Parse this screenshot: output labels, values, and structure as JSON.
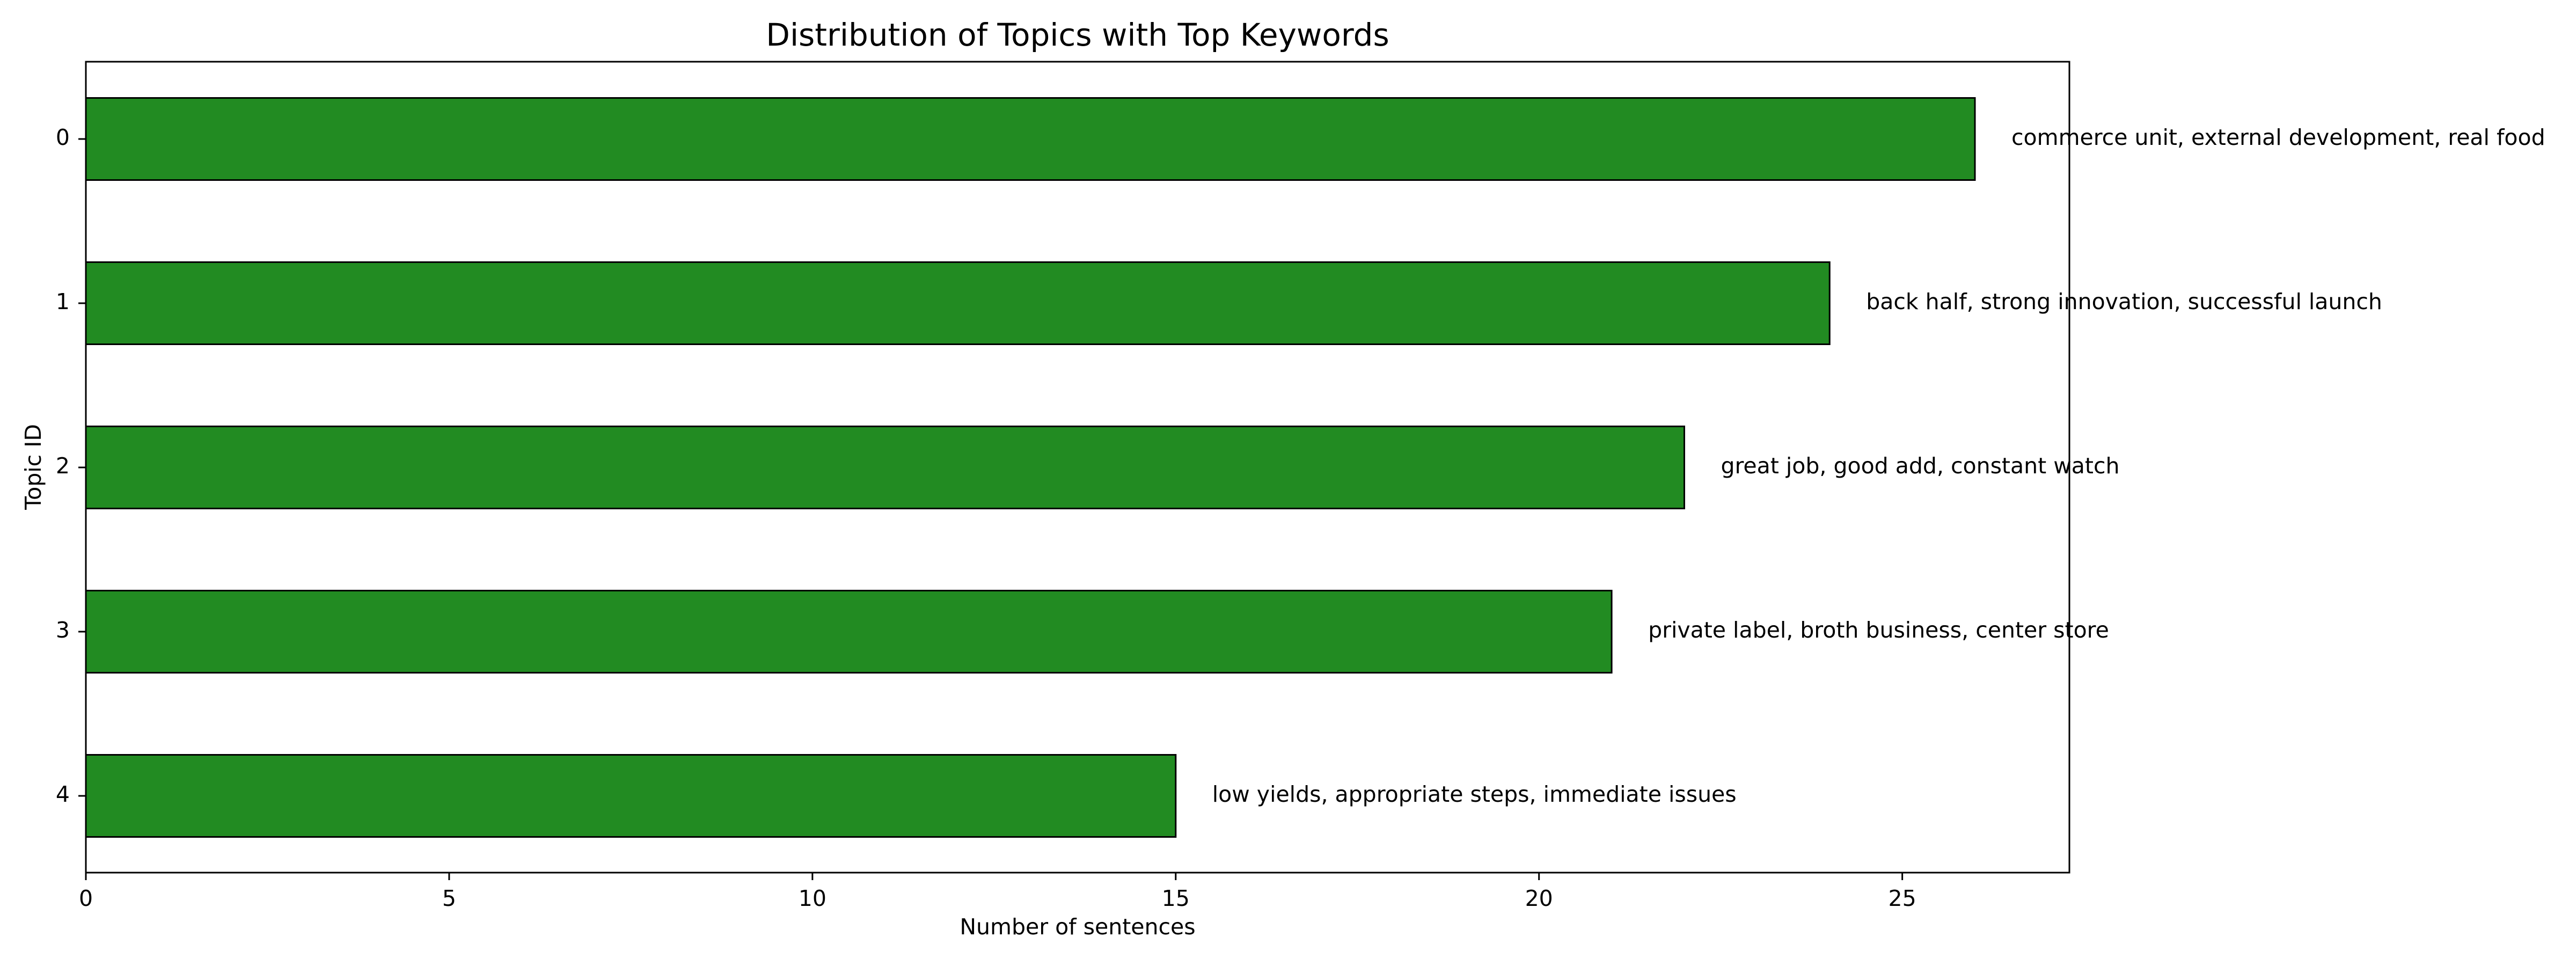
{
  "chart_data": {
    "type": "bar",
    "orientation": "horizontal",
    "title": "Distribution of Topics with Top Keywords",
    "xlabel": "Number of sentences",
    "ylabel": "Topic ID",
    "categories": [
      "0",
      "1",
      "2",
      "3",
      "4"
    ],
    "values": [
      26,
      24,
      22,
      21,
      15
    ],
    "data_labels": [
      "commerce unit, external development, real food",
      "back half, strong innovation, successful launch",
      "great job, good add, constant watch",
      "private label, broth business, center store",
      "low yields, appropriate steps, immediate issues"
    ],
    "xlim": [
      0,
      27.3
    ],
    "xticks": [
      0,
      5,
      10,
      15,
      20,
      25
    ],
    "grid": false,
    "bar_color": "#228b22",
    "bar_edge_color": "#000000"
  }
}
